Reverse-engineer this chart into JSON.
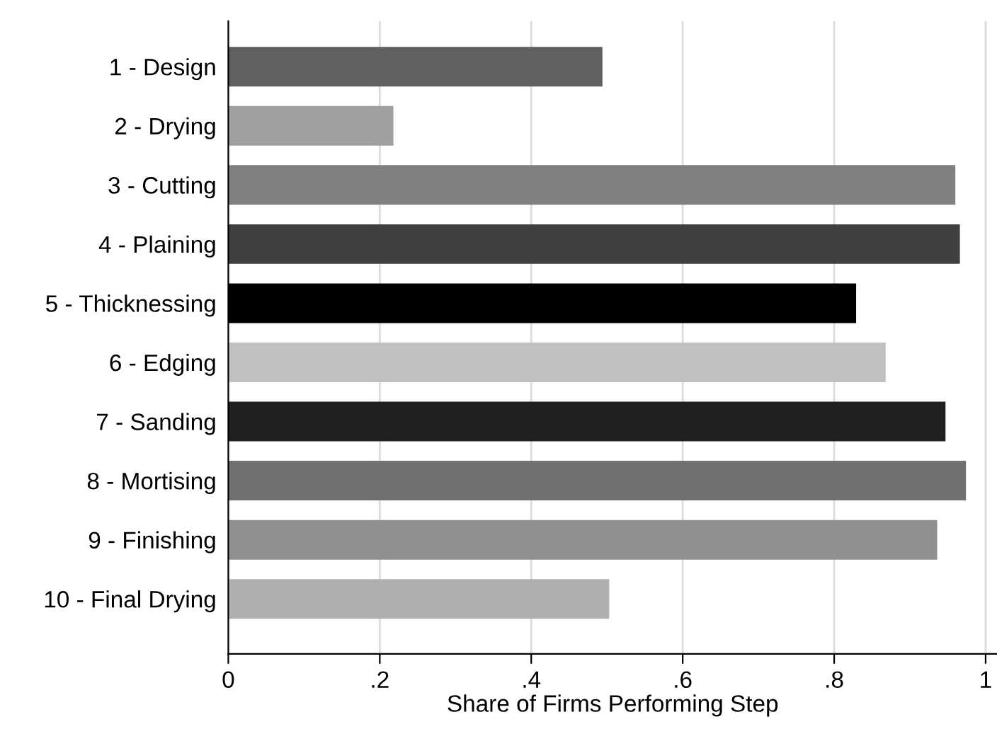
{
  "chart_data": {
    "type": "bar",
    "orientation": "horizontal",
    "xlabel": "Share of Firms Performing Step",
    "categories": [
      "1 - Design",
      "2 - Drying",
      "3 - Cutting",
      "4 - Plaining",
      "5 - Thicknessing",
      "6 - Edging",
      "7 - Sanding",
      "8 - Mortising",
      "9 - Finishing",
      "10 - Final Drying"
    ],
    "values": [
      0.494,
      0.218,
      0.96,
      0.966,
      0.829,
      0.868,
      0.947,
      0.974,
      0.936,
      0.503
    ],
    "colors": [
      "#606060",
      "#a0a0a0",
      "#808080",
      "#404040",
      "#000000",
      "#c0c0c0",
      "#202020",
      "#707070",
      "#909090",
      "#b0b0b0"
    ],
    "xlim": [
      0,
      1.015
    ],
    "xticks": [
      0,
      {
        "value": 0.2,
        "label": ".2"
      },
      {
        "value": 0.4,
        "label": ".4"
      },
      {
        "value": 0.6,
        "label": ".6"
      },
      {
        "value": 0.8,
        "label": ".8"
      },
      1
    ],
    "grid": "x",
    "legend": false
  }
}
